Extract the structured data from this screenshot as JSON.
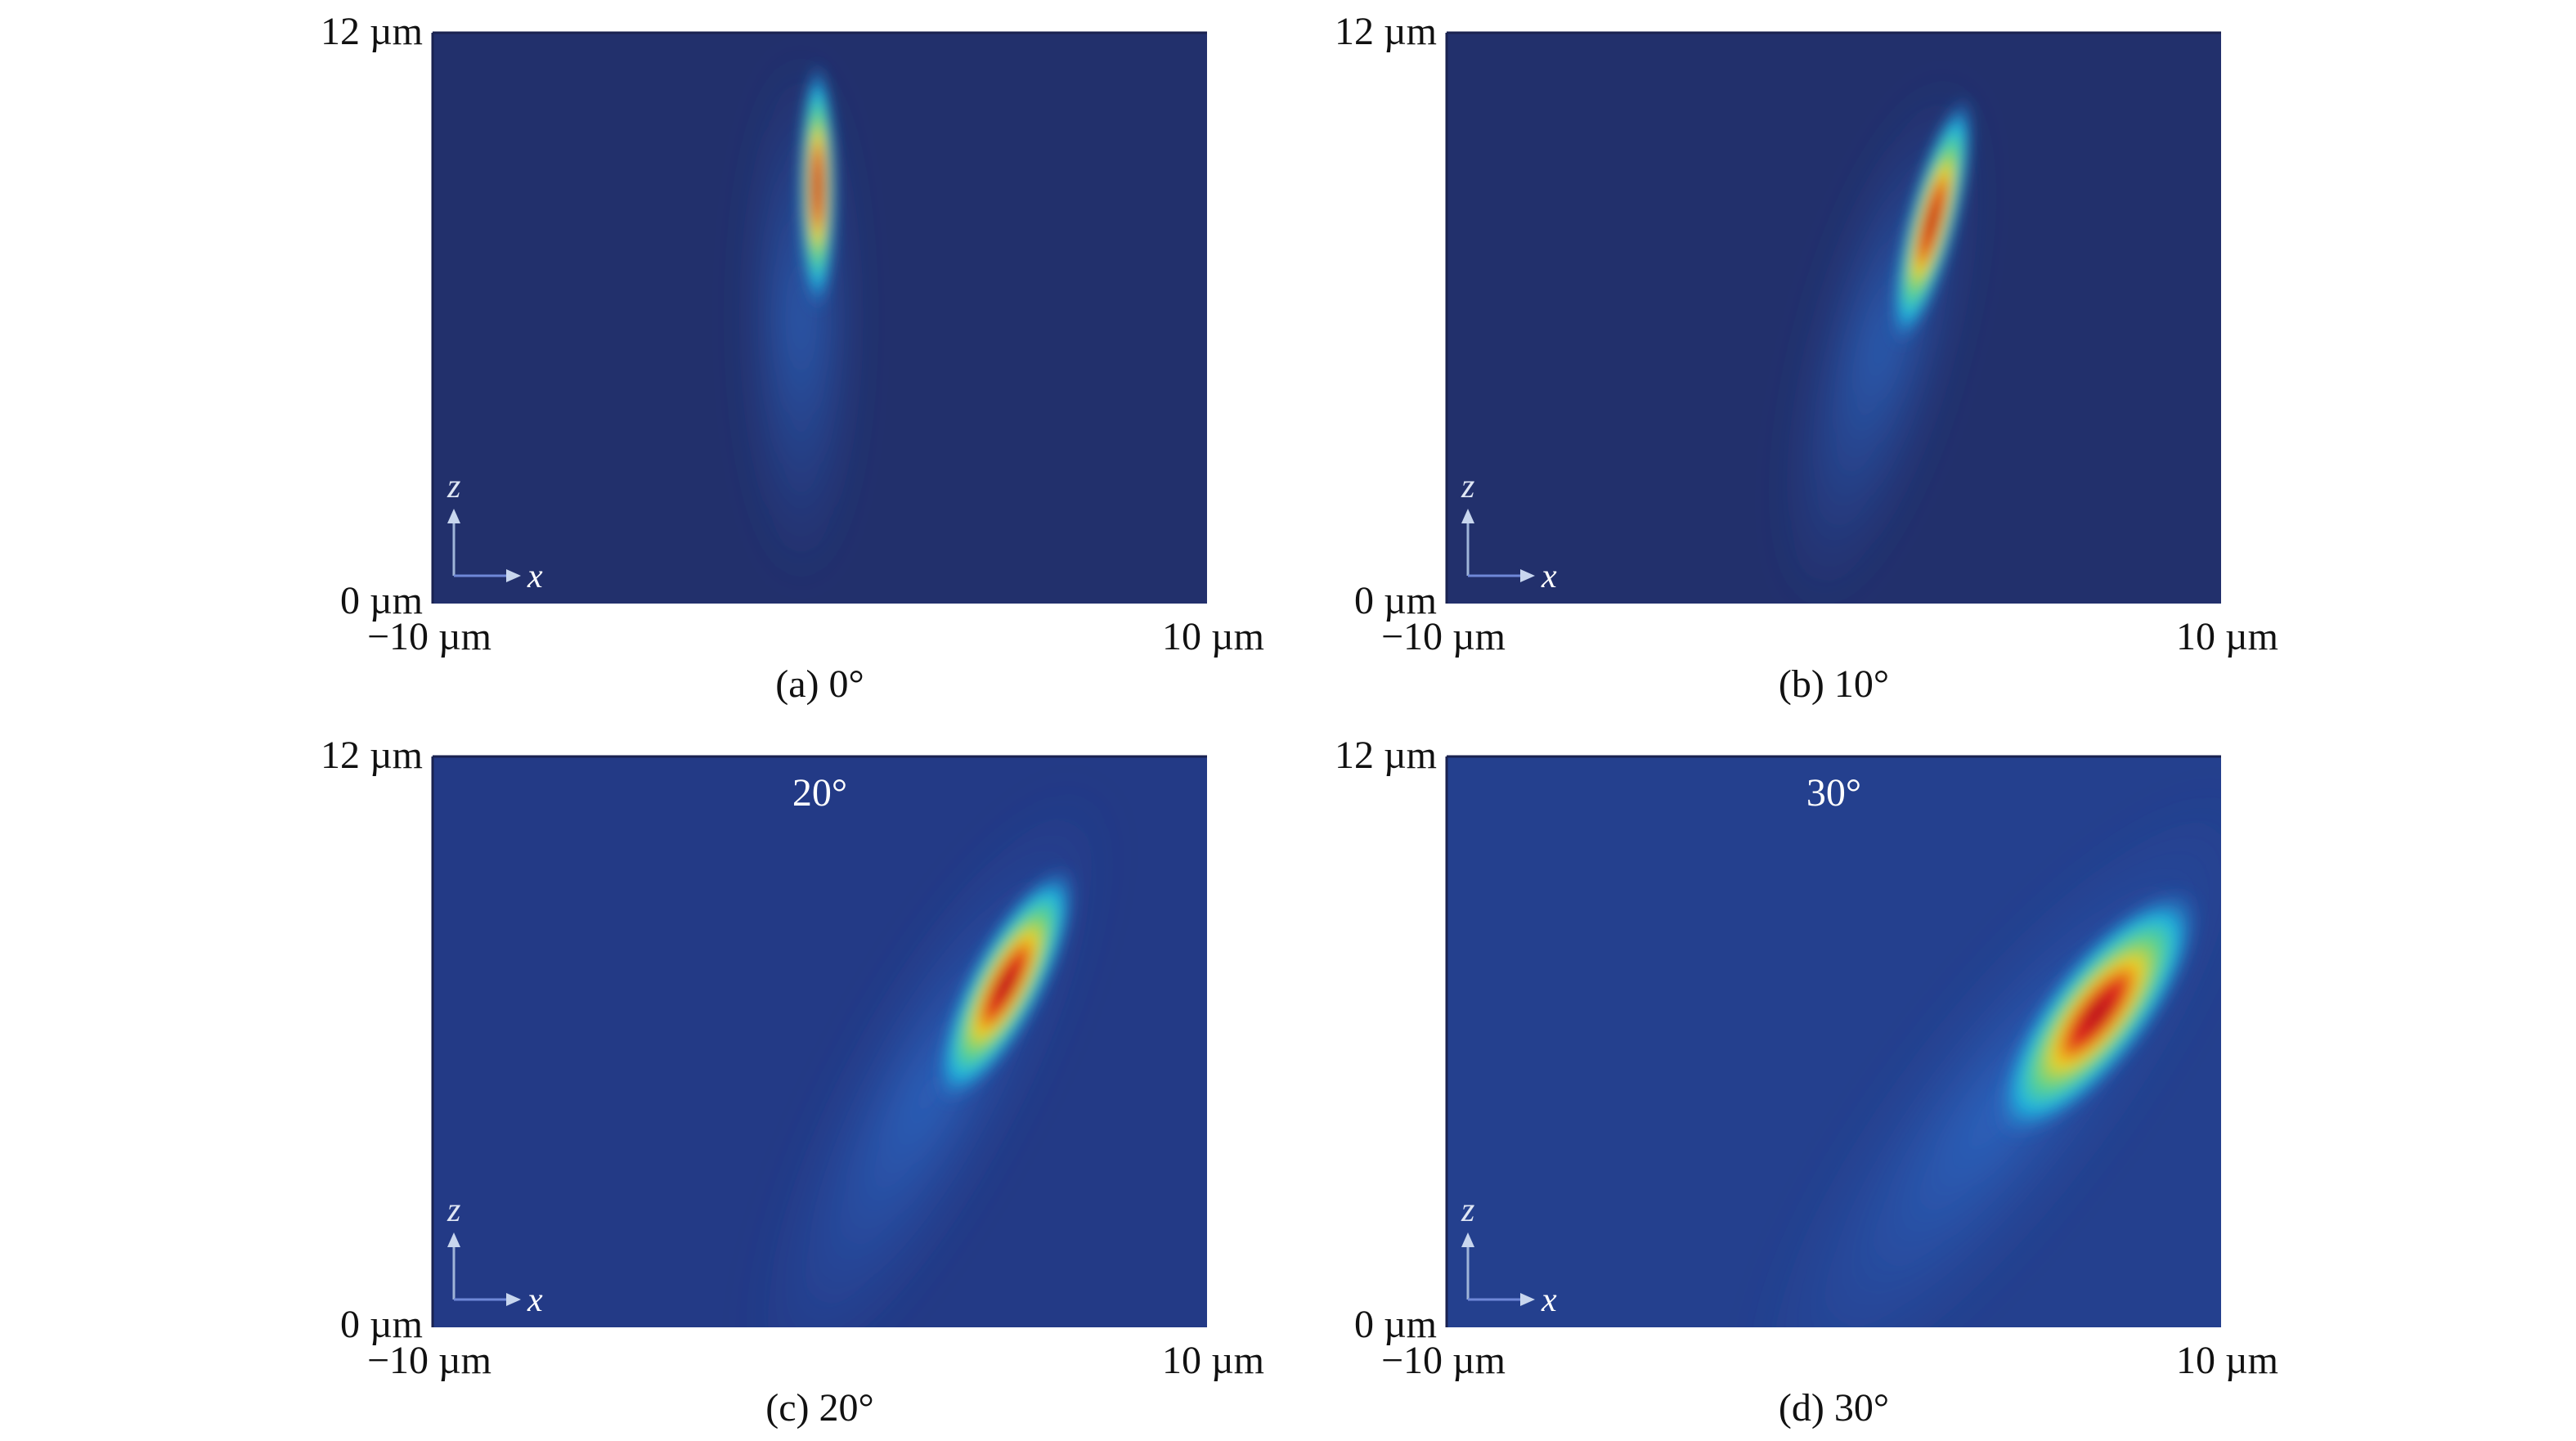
{
  "panels": [
    {
      "y_top": "12 µm",
      "y_bottom": "0 µm",
      "x_left": "−10 µm",
      "x_right": "10 µm",
      "axis_z": "z",
      "axis_x": "x",
      "caption": "(a) 0°"
    },
    {
      "y_top": "12 µm",
      "y_bottom": "0 µm",
      "x_left": "−10 µm",
      "x_right": "10 µm",
      "axis_z": "z",
      "axis_x": "x",
      "caption": "(b) 10°"
    },
    {
      "y_top": "12 µm",
      "y_bottom": "0 µm",
      "x_left": "−10 µm",
      "x_right": "10 µm",
      "axis_z": "z",
      "axis_x": "x",
      "caption": "(c) 20°",
      "overlay": "20°"
    },
    {
      "y_top": "12 µm",
      "y_bottom": "0 µm",
      "x_left": "−10 µm",
      "x_right": "10 µm",
      "axis_z": "z",
      "axis_x": "x",
      "caption": "(d) 30°",
      "overlay": "30°"
    }
  ]
}
